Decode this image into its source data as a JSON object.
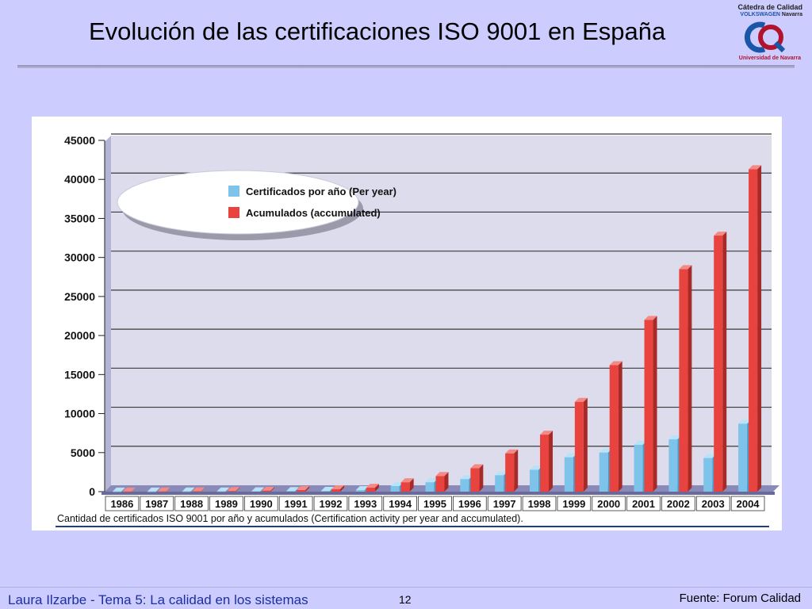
{
  "slide": {
    "title": "Evolución de las certificaciones ISO 9001 en España",
    "footer_left": "Laura Ilzarbe - Tema 5: La calidad en los sistemas",
    "page_number": "12",
    "source": "Fuente: Forum Calidad"
  },
  "logo": {
    "line1": "Cátedra de Calidad",
    "line2_brand": "VOLKSWAGEN",
    "line2_rest": "Navarra",
    "line3": "Universidad de Navarra",
    "colors": {
      "blue": "#1a56a8",
      "red": "#b3122d"
    }
  },
  "chart_data": {
    "type": "bar",
    "caption": "Cantidad de certificados ISO 9001 por año y acumulados (Certification activity per year and accumulated).",
    "categories": [
      "1986",
      "1987",
      "1988",
      "1989",
      "1990",
      "1991",
      "1992",
      "1993",
      "1994",
      "1995",
      "1996",
      "1997",
      "1998",
      "1999",
      "2000",
      "2001",
      "2002",
      "2003",
      "2004"
    ],
    "category_labels": [
      "1986",
      "1987",
      "1988",
      "1989",
      "1990",
      "1991",
      "1992",
      "1993",
      "1994",
      "1995",
      "1996",
      "1997",
      "1998",
      "1999",
      "2000",
      "2001",
      "2002",
      "2003",
      "2004"
    ],
    "series": [
      {
        "name": "Certificados por año (Per year)",
        "color": "#7ec3ea",
        "values": [
          10,
          10,
          20,
          30,
          50,
          80,
          100,
          200,
          700,
          1200,
          1600,
          2100,
          2800,
          4400,
          5000,
          6000,
          6700,
          4300,
          8700
        ]
      },
      {
        "name": "Acumulados (accumulated)",
        "color": "#e8433f",
        "values": [
          10,
          20,
          40,
          70,
          120,
          200,
          300,
          500,
          1200,
          2000,
          3000,
          4900,
          7300,
          11500,
          16200,
          22000,
          28500,
          32800,
          41300
        ]
      }
    ],
    "ylim": [
      0,
      45000
    ],
    "yticks": [
      0,
      5000,
      10000,
      15000,
      20000,
      25000,
      30000,
      35000,
      40000,
      45000
    ],
    "grid": true,
    "legend_position": "top-left",
    "style": "3d"
  }
}
